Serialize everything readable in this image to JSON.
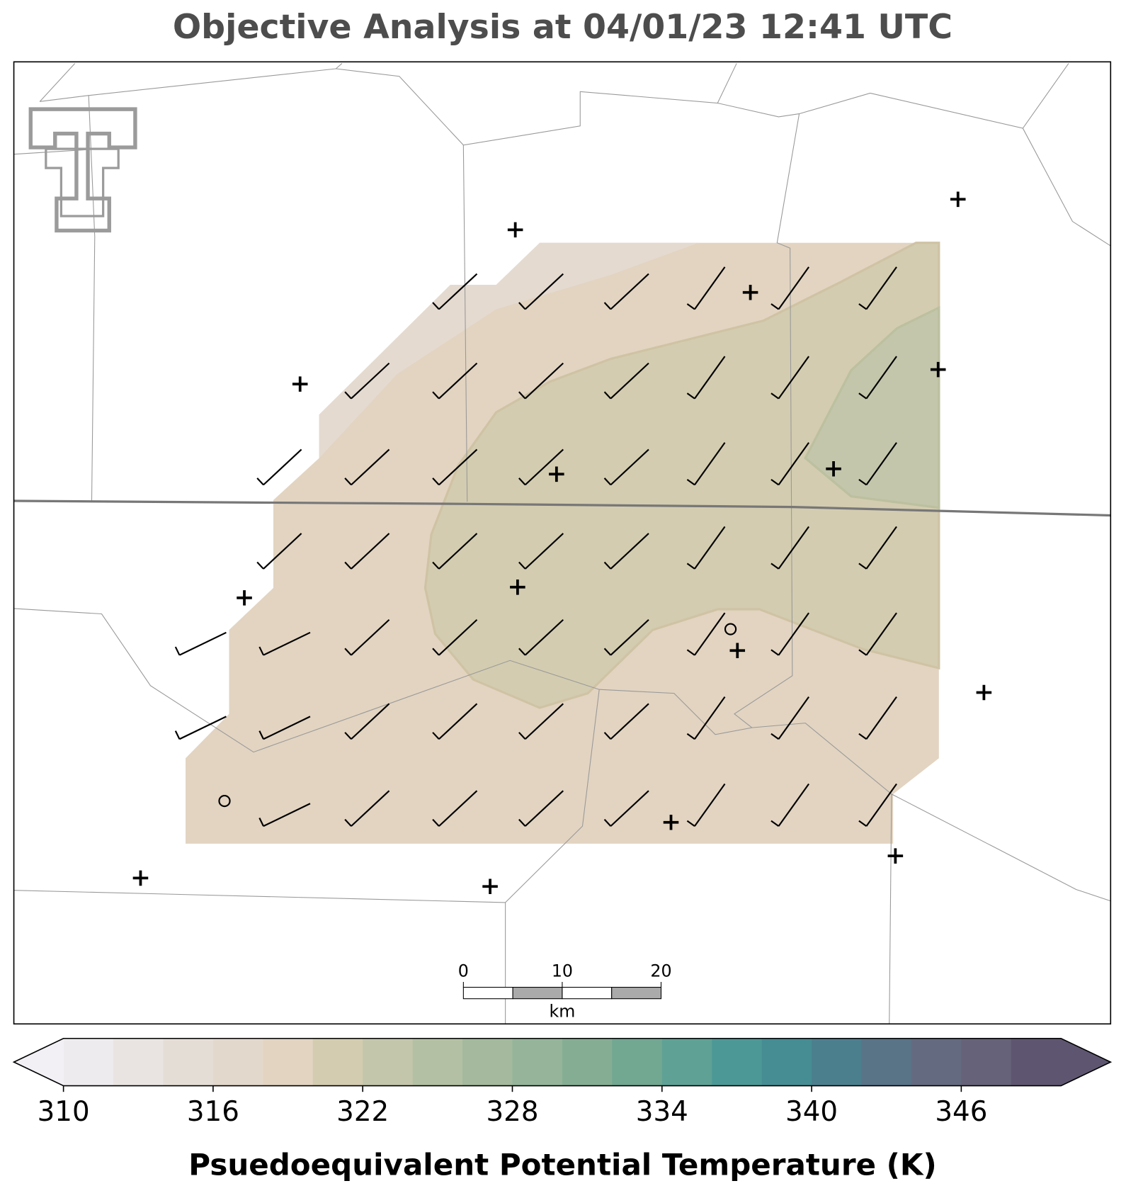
{
  "title": "Objective Analysis at 04/01/23 12:41 UTC",
  "colorbar": {
    "label": "Psuedoequivalent Potential Temperature (K)",
    "boundaries": [
      310,
      312,
      314,
      316,
      318,
      320,
      322,
      324,
      326,
      328,
      330,
      332,
      334,
      336,
      338,
      340,
      342,
      344,
      346,
      348,
      350
    ],
    "colors": [
      "#eeebee",
      "#e9e4e2",
      "#e4ddd6",
      "#e3d8cc",
      "#e2d4c1",
      "#d3ccb0",
      "#c3c6ab",
      "#b3c0a3",
      "#a4b99d",
      "#95b49a",
      "#85ad94",
      "#72a792",
      "#5fa195",
      "#4c9896",
      "#468c93",
      "#4c7f8e",
      "#597387",
      "#646a7f",
      "#656279",
      "#5e5670"
    ],
    "under_color": "#f2f0f5",
    "over_color": "#5e5670",
    "ticks": [
      310,
      316,
      322,
      328,
      334,
      340,
      346
    ]
  },
  "scale_bar": {
    "ticks": [
      0,
      10,
      20
    ],
    "unit": "km"
  }
}
